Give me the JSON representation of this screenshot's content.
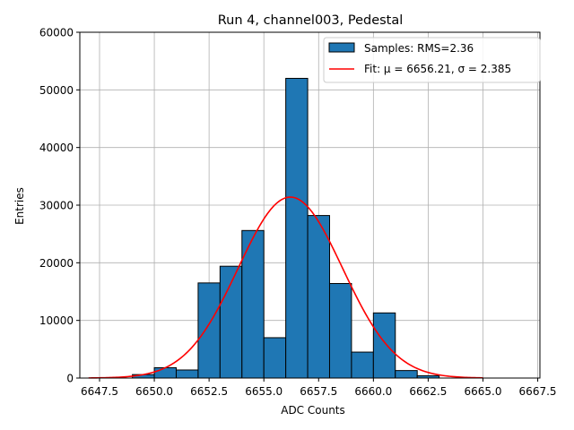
{
  "chart_data": {
    "type": "bar",
    "title": "Run 4, channel003, Pedestal",
    "xlabel": "ADC Counts",
    "ylabel": "Entries",
    "xlim": [
      6646.6,
      6667.6
    ],
    "ylim": [
      0,
      60000
    ],
    "xticks": [
      6647.5,
      6650.0,
      6652.5,
      6655.0,
      6657.5,
      6660.0,
      6662.5,
      6665.0,
      6667.5
    ],
    "xtick_labels": [
      "6647.5",
      "6650.0",
      "6652.5",
      "6655.0",
      "6657.5",
      "6660.0",
      "6662.5",
      "6665.0",
      "6667.5"
    ],
    "yticks": [
      0,
      10000,
      20000,
      30000,
      40000,
      50000,
      60000
    ],
    "ytick_labels": [
      "0",
      "10000",
      "20000",
      "30000",
      "40000",
      "50000",
      "60000"
    ],
    "grid": true,
    "legend_position": "top-right",
    "bar_color": "#1f77b4",
    "fit_color": "#ff0000",
    "histogram": {
      "name": "Samples: RMS=2.36",
      "bins": [
        {
          "left": 6649.0,
          "right": 6650.0,
          "value": 600
        },
        {
          "left": 6650.0,
          "right": 6651.0,
          "value": 1800
        },
        {
          "left": 6651.0,
          "right": 6652.0,
          "value": 1400
        },
        {
          "left": 6652.0,
          "right": 6653.0,
          "value": 16500
        },
        {
          "left": 6653.0,
          "right": 6654.0,
          "value": 19400
        },
        {
          "left": 6654.0,
          "right": 6655.0,
          "value": 25600
        },
        {
          "left": 6655.0,
          "right": 6656.0,
          "value": 7000
        },
        {
          "left": 6656.0,
          "right": 6657.0,
          "value": 52000
        },
        {
          "left": 6657.0,
          "right": 6658.0,
          "value": 28200
        },
        {
          "left": 6658.0,
          "right": 6659.0,
          "value": 16400
        },
        {
          "left": 6659.0,
          "right": 6660.0,
          "value": 4500
        },
        {
          "left": 6660.0,
          "right": 6661.0,
          "value": 11300
        },
        {
          "left": 6661.0,
          "right": 6662.0,
          "value": 1300
        },
        {
          "left": 6662.0,
          "right": 6663.0,
          "value": 400
        }
      ]
    },
    "fit": {
      "name": "Fit: μ = 6656.21, σ = 2.385",
      "mu": 6656.21,
      "sigma": 2.385,
      "amplitude": 31400,
      "x_range": [
        6647.0,
        6665.0
      ]
    }
  }
}
